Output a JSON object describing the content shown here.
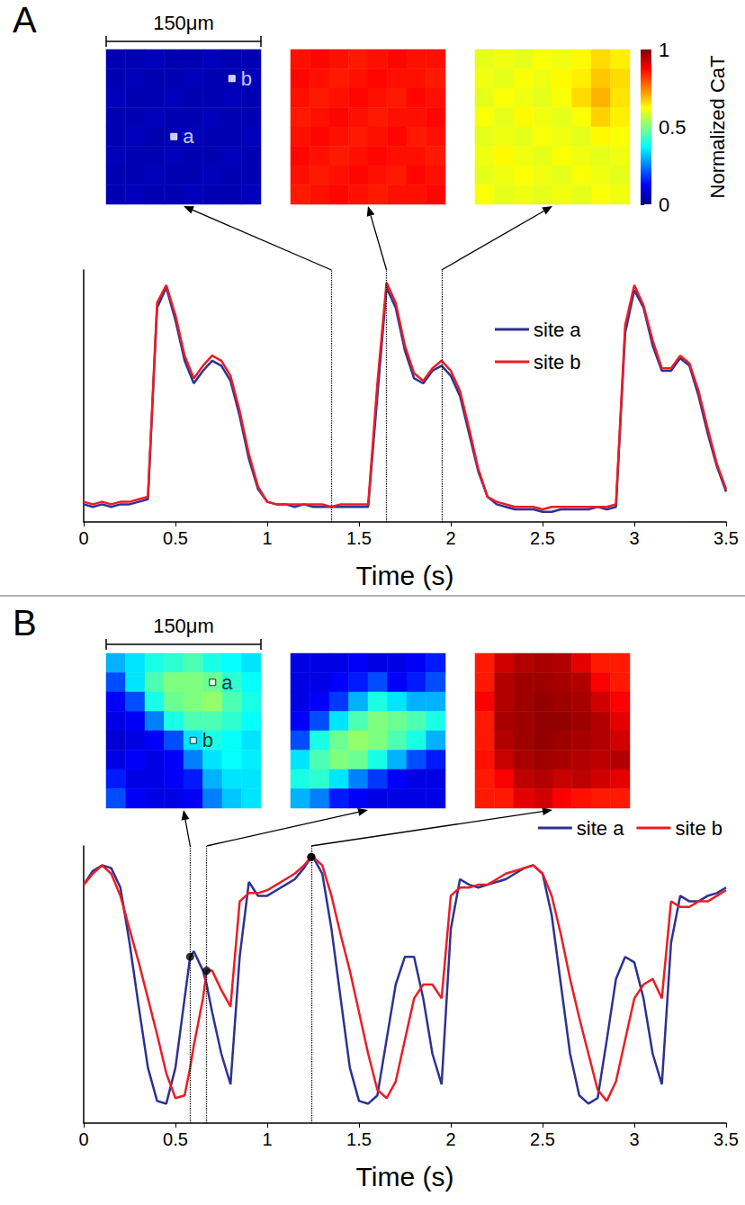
{
  "chart_data": [
    {
      "panel": "A",
      "type": "line",
      "xlabel": "Time (s)",
      "scale_bar": "150μm",
      "x": [
        0,
        0.05,
        0.1,
        0.15,
        0.2,
        0.25,
        0.3,
        0.35,
        0.4,
        0.45,
        0.5,
        0.55,
        0.6,
        0.65,
        0.7,
        0.75,
        0.8,
        0.85,
        0.9,
        0.95,
        1,
        1.05,
        1.1,
        1.15,
        1.2,
        1.25,
        1.3,
        1.35,
        1.4,
        1.45,
        1.5,
        1.55,
        1.6,
        1.65,
        1.7,
        1.75,
        1.8,
        1.85,
        1.9,
        1.95,
        2,
        2.05,
        2.1,
        2.15,
        2.2,
        2.25,
        2.3,
        2.35,
        2.4,
        2.45,
        2.5,
        2.55,
        2.6,
        2.65,
        2.7,
        2.75,
        2.8,
        2.85,
        2.9,
        2.95,
        3,
        3.05,
        3.1,
        3.15,
        3.2,
        3.25,
        3.3,
        3.35,
        3.4,
        3.45,
        3.5
      ],
      "series": [
        {
          "name": "site a",
          "color": "#2e3192",
          "values": [
            0.07,
            0.06,
            0.07,
            0.06,
            0.07,
            0.07,
            0.08,
            0.09,
            0.85,
            0.93,
            0.8,
            0.64,
            0.55,
            0.6,
            0.64,
            0.62,
            0.56,
            0.42,
            0.25,
            0.13,
            0.08,
            0.07,
            0.07,
            0.06,
            0.07,
            0.06,
            0.06,
            0.06,
            0.06,
            0.06,
            0.06,
            0.06,
            0.5,
            0.93,
            0.85,
            0.68,
            0.57,
            0.55,
            0.6,
            0.62,
            0.58,
            0.5,
            0.35,
            0.2,
            0.1,
            0.07,
            0.06,
            0.05,
            0.05,
            0.05,
            0.04,
            0.04,
            0.05,
            0.05,
            0.05,
            0.05,
            0.06,
            0.05,
            0.06,
            0.75,
            0.92,
            0.85,
            0.7,
            0.6,
            0.6,
            0.65,
            0.62,
            0.5,
            0.35,
            0.22,
            0.12
          ]
        },
        {
          "name": "site b",
          "color": "#ed1c24",
          "values": [
            0.08,
            0.07,
            0.08,
            0.07,
            0.08,
            0.08,
            0.09,
            0.1,
            0.87,
            0.94,
            0.82,
            0.66,
            0.57,
            0.62,
            0.66,
            0.64,
            0.58,
            0.44,
            0.27,
            0.14,
            0.08,
            0.07,
            0.07,
            0.07,
            0.07,
            0.07,
            0.07,
            0.06,
            0.07,
            0.07,
            0.07,
            0.07,
            0.55,
            0.95,
            0.87,
            0.7,
            0.59,
            0.56,
            0.61,
            0.64,
            0.6,
            0.52,
            0.37,
            0.21,
            0.1,
            0.08,
            0.07,
            0.06,
            0.06,
            0.06,
            0.05,
            0.06,
            0.06,
            0.06,
            0.06,
            0.06,
            0.06,
            0.06,
            0.07,
            0.78,
            0.94,
            0.86,
            0.72,
            0.61,
            0.61,
            0.66,
            0.63,
            0.52,
            0.37,
            0.23,
            0.13
          ]
        }
      ],
      "xlim": [
        0,
        3.5
      ],
      "xticks": [
        0,
        0.5,
        1,
        1.5,
        2,
        2.5,
        3,
        3.5
      ],
      "ylim": [
        0,
        1
      ],
      "tick_labels": "x",
      "legend": "right",
      "colorbar": {
        "label": "Normalized CaT",
        "range": [
          0,
          1
        ],
        "ticks": [
          0,
          0.5,
          1
        ]
      },
      "snapshots": [
        {
          "time": 1.35,
          "sites": [
            {
              "name": "a",
              "col": 3,
              "row": 4
            },
            {
              "name": "b",
              "col": 6,
              "row": 1
            }
          ],
          "cells": [
            [
              0.05,
              0.05,
              0.06,
              0.05,
              0.05,
              0.06,
              0.05,
              0.05
            ],
            [
              0.05,
              0.06,
              0.05,
              0.05,
              0.06,
              0.05,
              0.05,
              0.06
            ],
            [
              0.06,
              0.05,
              0.05,
              0.06,
              0.05,
              0.05,
              0.06,
              0.05
            ],
            [
              0.05,
              0.05,
              0.06,
              0.05,
              0.05,
              0.06,
              0.05,
              0.05
            ],
            [
              0.05,
              0.06,
              0.05,
              0.05,
              0.06,
              0.05,
              0.05,
              0.06
            ],
            [
              0.06,
              0.05,
              0.05,
              0.06,
              0.05,
              0.05,
              0.06,
              0.05
            ],
            [
              0.05,
              0.05,
              0.06,
              0.05,
              0.05,
              0.06,
              0.05,
              0.05
            ],
            [
              0.05,
              0.06,
              0.05,
              0.05,
              0.06,
              0.05,
              0.05,
              0.06
            ]
          ]
        },
        {
          "time": 1.65,
          "cells": [
            [
              0.86,
              0.87,
              0.86,
              0.85,
              0.86,
              0.87,
              0.86,
              0.86
            ],
            [
              0.87,
              0.86,
              0.85,
              0.86,
              0.87,
              0.86,
              0.86,
              0.85
            ],
            [
              0.86,
              0.85,
              0.86,
              0.87,
              0.86,
              0.85,
              0.87,
              0.86
            ],
            [
              0.85,
              0.86,
              0.87,
              0.86,
              0.85,
              0.86,
              0.86,
              0.87
            ],
            [
              0.86,
              0.87,
              0.86,
              0.85,
              0.86,
              0.87,
              0.85,
              0.86
            ],
            [
              0.87,
              0.86,
              0.85,
              0.86,
              0.87,
              0.86,
              0.86,
              0.85
            ],
            [
              0.86,
              0.85,
              0.86,
              0.87,
              0.86,
              0.85,
              0.87,
              0.86
            ],
            [
              0.85,
              0.86,
              0.87,
              0.86,
              0.85,
              0.86,
              0.86,
              0.87
            ]
          ]
        },
        {
          "time": 1.95,
          "cells": [
            [
              0.6,
              0.61,
              0.6,
              0.62,
              0.61,
              0.63,
              0.66,
              0.64
            ],
            [
              0.61,
              0.6,
              0.62,
              0.61,
              0.63,
              0.64,
              0.68,
              0.66
            ],
            [
              0.6,
              0.62,
              0.61,
              0.6,
              0.62,
              0.66,
              0.7,
              0.65
            ],
            [
              0.62,
              0.6,
              0.63,
              0.61,
              0.6,
              0.62,
              0.67,
              0.64
            ],
            [
              0.6,
              0.61,
              0.6,
              0.62,
              0.61,
              0.6,
              0.63,
              0.62
            ],
            [
              0.61,
              0.63,
              0.61,
              0.6,
              0.62,
              0.61,
              0.6,
              0.61
            ],
            [
              0.6,
              0.61,
              0.62,
              0.61,
              0.6,
              0.62,
              0.61,
              0.6
            ],
            [
              0.62,
              0.6,
              0.61,
              0.6,
              0.61,
              0.6,
              0.62,
              0.61
            ]
          ]
        }
      ]
    },
    {
      "panel": "B",
      "type": "line",
      "xlabel": "Time (s)",
      "scale_bar": "150μm",
      "x": [
        0,
        0.05,
        0.1,
        0.15,
        0.2,
        0.25,
        0.3,
        0.35,
        0.4,
        0.45,
        0.5,
        0.55,
        0.58,
        0.6,
        0.65,
        0.67,
        0.7,
        0.75,
        0.8,
        0.85,
        0.9,
        0.95,
        1,
        1.05,
        1.1,
        1.15,
        1.2,
        1.24,
        1.25,
        1.3,
        1.35,
        1.4,
        1.45,
        1.5,
        1.55,
        1.6,
        1.65,
        1.7,
        1.75,
        1.8,
        1.85,
        1.9,
        1.95,
        2,
        2.05,
        2.1,
        2.15,
        2.2,
        2.25,
        2.3,
        2.35,
        2.4,
        2.45,
        2.5,
        2.55,
        2.6,
        2.65,
        2.7,
        2.75,
        2.8,
        2.85,
        2.9,
        2.95,
        3,
        3.05,
        3.1,
        3.15,
        3.2,
        3.25,
        3.3,
        3.35,
        3.4,
        3.45,
        3.5
      ],
      "series": [
        {
          "name": "site a",
          "color": "#2e3192",
          "values": [
            0.86,
            0.91,
            0.93,
            0.92,
            0.85,
            0.65,
            0.42,
            0.2,
            0.08,
            0.07,
            0.2,
            0.45,
            0.6,
            0.62,
            0.55,
            0.5,
            0.4,
            0.25,
            0.14,
            0.6,
            0.87,
            0.82,
            0.82,
            0.84,
            0.86,
            0.88,
            0.92,
            0.96,
            0.96,
            0.9,
            0.7,
            0.45,
            0.2,
            0.08,
            0.07,
            0.1,
            0.3,
            0.5,
            0.6,
            0.6,
            0.45,
            0.25,
            0.14,
            0.7,
            0.88,
            0.86,
            0.85,
            0.86,
            0.87,
            0.88,
            0.9,
            0.92,
            0.93,
            0.9,
            0.75,
            0.5,
            0.25,
            0.1,
            0.07,
            0.09,
            0.3,
            0.52,
            0.6,
            0.58,
            0.45,
            0.25,
            0.14,
            0.65,
            0.82,
            0.8,
            0.8,
            0.82,
            0.83,
            0.85
          ]
        },
        {
          "name": "site b",
          "color": "#ed1c24",
          "values": [
            0.86,
            0.9,
            0.93,
            0.9,
            0.82,
            0.7,
            0.58,
            0.45,
            0.32,
            0.18,
            0.09,
            0.1,
            0.2,
            0.28,
            0.45,
            0.55,
            0.55,
            0.48,
            0.42,
            0.8,
            0.83,
            0.83,
            0.84,
            0.86,
            0.88,
            0.9,
            0.93,
            0.96,
            0.96,
            0.93,
            0.82,
            0.68,
            0.55,
            0.4,
            0.25,
            0.12,
            0.09,
            0.15,
            0.3,
            0.45,
            0.5,
            0.5,
            0.45,
            0.82,
            0.85,
            0.85,
            0.86,
            0.86,
            0.88,
            0.9,
            0.91,
            0.92,
            0.93,
            0.9,
            0.82,
            0.68,
            0.52,
            0.38,
            0.25,
            0.12,
            0.08,
            0.15,
            0.3,
            0.45,
            0.5,
            0.52,
            0.45,
            0.8,
            0.78,
            0.78,
            0.8,
            0.8,
            0.82,
            0.84
          ]
        }
      ],
      "xlim": [
        0,
        3.5
      ],
      "xticks": [
        0,
        0.5,
        1,
        1.5,
        2,
        2.5,
        3,
        3.5
      ],
      "ylim": [
        0,
        1
      ],
      "tick_labels": "x",
      "legend": "top right",
      "snapshots": [
        {
          "time": 0.58,
          "marked": [
            "site a"
          ],
          "sites": [
            {
              "name": "a",
              "col": 5,
              "row": 1
            },
            {
              "name": "b",
              "col": 4,
              "row": 4
            }
          ],
          "cells": [
            [
              0.3,
              0.35,
              0.4,
              0.42,
              0.45,
              0.4,
              0.38,
              0.35
            ],
            [
              0.2,
              0.35,
              0.45,
              0.5,
              0.5,
              0.48,
              0.42,
              0.38
            ],
            [
              0.12,
              0.2,
              0.4,
              0.48,
              0.5,
              0.52,
              0.45,
              0.4
            ],
            [
              0.1,
              0.12,
              0.25,
              0.4,
              0.45,
              0.45,
              0.42,
              0.38
            ],
            [
              0.08,
              0.1,
              0.12,
              0.2,
              0.35,
              0.4,
              0.38,
              0.35
            ],
            [
              0.1,
              0.12,
              0.1,
              0.12,
              0.25,
              0.35,
              0.38,
              0.36
            ],
            [
              0.15,
              0.1,
              0.1,
              0.12,
              0.15,
              0.3,
              0.35,
              0.35
            ],
            [
              0.2,
              0.12,
              0.1,
              0.1,
              0.12,
              0.25,
              0.32,
              0.35
            ]
          ]
        },
        {
          "time": 0.67,
          "marked": [
            "site b"
          ],
          "cells": [
            [
              0.1,
              0.1,
              0.1,
              0.12,
              0.1,
              0.1,
              0.12,
              0.15
            ],
            [
              0.1,
              0.1,
              0.12,
              0.15,
              0.2,
              0.12,
              0.15,
              0.2
            ],
            [
              0.1,
              0.12,
              0.18,
              0.3,
              0.4,
              0.35,
              0.3,
              0.3
            ],
            [
              0.12,
              0.2,
              0.35,
              0.45,
              0.5,
              0.48,
              0.45,
              0.4
            ],
            [
              0.2,
              0.4,
              0.48,
              0.52,
              0.5,
              0.45,
              0.4,
              0.3
            ],
            [
              0.35,
              0.45,
              0.5,
              0.48,
              0.4,
              0.3,
              0.2,
              0.15
            ],
            [
              0.4,
              0.42,
              0.35,
              0.25,
              0.18,
              0.12,
              0.1,
              0.1
            ],
            [
              0.3,
              0.25,
              0.15,
              0.12,
              0.1,
              0.1,
              0.1,
              0.1
            ]
          ]
        },
        {
          "time": 1.24,
          "marked": [
            "site a",
            "site b"
          ],
          "cells": [
            [
              0.85,
              0.92,
              0.95,
              0.96,
              0.95,
              0.9,
              0.85,
              0.85
            ],
            [
              0.85,
              0.95,
              0.97,
              0.97,
              0.96,
              0.95,
              0.88,
              0.85
            ],
            [
              0.88,
              0.95,
              0.97,
              0.98,
              0.97,
              0.96,
              0.92,
              0.88
            ],
            [
              0.85,
              0.96,
              0.97,
              0.98,
              0.98,
              0.97,
              0.95,
              0.9
            ],
            [
              0.85,
              0.95,
              0.97,
              0.98,
              0.97,
              0.96,
              0.95,
              0.92
            ],
            [
              0.86,
              0.93,
              0.96,
              0.97,
              0.96,
              0.95,
              0.94,
              0.95
            ],
            [
              0.85,
              0.88,
              0.94,
              0.95,
              0.93,
              0.94,
              0.92,
              0.9
            ],
            [
              0.85,
              0.85,
              0.9,
              0.92,
              0.88,
              0.86,
              0.85,
              0.85
            ]
          ]
        }
      ]
    }
  ]
}
